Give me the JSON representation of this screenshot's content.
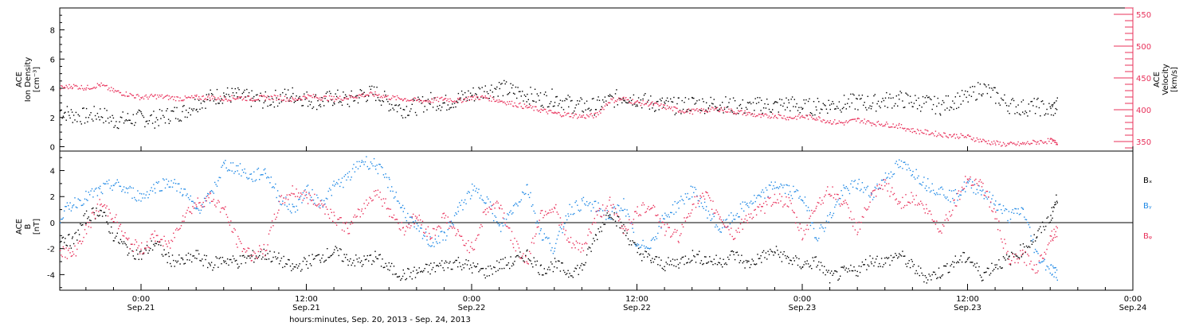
{
  "x_axis": {
    "title": "hours:minutes, Sep. 20, 2013 - Sep. 24, 2013",
    "ticks": [
      {
        "hour": 0,
        "time": "0:00",
        "date": "Sep.21"
      },
      {
        "hour": 12,
        "time": "12:00",
        "date": "Sep.21"
      },
      {
        "hour": 24,
        "time": "0:00",
        "date": "Sep.22"
      },
      {
        "hour": 36,
        "time": "12:00",
        "date": "Sep.22"
      },
      {
        "hour": 48,
        "time": "0:00",
        "date": "Sep.23"
      },
      {
        "hour": 60,
        "time": "12:00",
        "date": "Sep.23"
      },
      {
        "hour": 72,
        "time": "0:00",
        "date": "Sep.24"
      }
    ],
    "range_hours": [
      -5.9,
      72
    ]
  },
  "colors": {
    "black": "#000000",
    "magenta": "#e8305a",
    "blue": "#1e88e5"
  },
  "chart_data": [
    {
      "type": "scatter",
      "panel": "top",
      "ylabel_left": [
        "ACE",
        "Ion Density",
        "[cm⁻³]"
      ],
      "ylabel_right": [
        "ACE",
        "Velocity",
        "[km/s]"
      ],
      "ylim_left": [
        -0.3,
        9.5
      ],
      "ylim_right": [
        335,
        560
      ],
      "yticks_left": [
        0,
        2,
        4,
        6,
        8
      ],
      "yticks_right": [
        350,
        400,
        450,
        500,
        550
      ],
      "series": [
        {
          "axis": "left",
          "color": "black",
          "x": [
            -5.9,
            -5.0,
            -4.0,
            -3.0,
            -2.0,
            -1.0,
            0,
            1,
            2,
            3,
            4,
            5,
            6,
            7,
            8,
            9,
            10,
            11,
            12,
            13,
            14,
            15,
            16,
            17,
            18,
            19,
            20,
            21,
            22,
            23,
            24,
            25,
            26,
            27,
            28,
            29,
            30,
            31,
            32,
            33,
            34,
            35,
            36,
            37,
            38,
            39,
            40,
            41,
            42,
            43,
            44,
            45,
            46,
            47,
            48,
            49,
            50,
            51,
            52,
            53,
            54,
            55,
            56,
            57,
            58,
            59,
            60,
            61,
            62,
            63,
            64,
            65,
            66,
            66.5
          ],
          "values": [
            2.5,
            2.2,
            2.1,
            2.3,
            1.8,
            1.9,
            2.0,
            1.9,
            2.2,
            2.4,
            3.0,
            3.4,
            3.6,
            3.5,
            3.3,
            3.2,
            3.4,
            3.6,
            3.3,
            3.1,
            3.4,
            3.2,
            3.6,
            3.7,
            3.0,
            2.6,
            2.8,
            3.2,
            3.0,
            3.3,
            3.6,
            3.9,
            4.1,
            3.8,
            3.6,
            3.3,
            3.4,
            3.0,
            2.8,
            2.8,
            3.2,
            3.5,
            3.3,
            3.0,
            2.9,
            2.8,
            3.0,
            2.9,
            3.0,
            2.8,
            2.7,
            2.9,
            2.8,
            3.0,
            2.7,
            2.8,
            2.9,
            3.0,
            3.1,
            3.0,
            3.2,
            3.3,
            3.1,
            3.0,
            2.8,
            3.2,
            3.4,
            4.1,
            3.5,
            2.9,
            2.7,
            2.8,
            2.5,
            2.9
          ]
        },
        {
          "axis": "right",
          "color": "magenta",
          "x": [
            -5.9,
            -5.0,
            -4.0,
            -3.0,
            -2.0,
            -1.0,
            0,
            1,
            2,
            3,
            4,
            5,
            6,
            7,
            8,
            9,
            10,
            11,
            12,
            13,
            14,
            15,
            16,
            17,
            18,
            19,
            20,
            21,
            22,
            23,
            24,
            25,
            26,
            27,
            28,
            29,
            30,
            31,
            32,
            33,
            34,
            35,
            36,
            37,
            38,
            39,
            40,
            41,
            42,
            43,
            44,
            45,
            46,
            47,
            48,
            49,
            50,
            51,
            52,
            53,
            54,
            55,
            56,
            57,
            58,
            59,
            60,
            61,
            62,
            63,
            64,
            65,
            66,
            66.5
          ],
          "values": [
            435,
            438,
            435,
            440,
            430,
            425,
            420,
            422,
            420,
            418,
            420,
            420,
            418,
            420,
            418,
            420,
            420,
            416,
            422,
            420,
            418,
            420,
            424,
            425,
            420,
            418,
            415,
            415,
            418,
            415,
            420,
            420,
            415,
            410,
            405,
            400,
            395,
            393,
            390,
            392,
            415,
            418,
            412,
            410,
            405,
            400,
            398,
            400,
            402,
            398,
            395,
            390,
            392,
            388,
            390,
            388,
            382,
            380,
            385,
            380,
            378,
            375,
            368,
            365,
            362,
            360,
            358,
            352,
            348,
            346,
            347,
            350,
            352,
            348
          ]
        }
      ]
    },
    {
      "type": "scatter",
      "panel": "bottom",
      "ylabel_left": [
        "ACE",
        "B",
        "[nT]"
      ],
      "ylim": [
        -5.2,
        5.5
      ],
      "yticks": [
        -4,
        -2,
        0,
        2,
        4
      ],
      "zero_line": true,
      "series": [
        {
          "name": "Bₓ",
          "color": "black",
          "x": [
            -5.9,
            -5.0,
            -4.0,
            -3.0,
            -2.0,
            -1.0,
            0,
            1,
            2,
            3,
            4,
            5,
            6,
            7,
            8,
            9,
            10,
            11,
            12,
            13,
            14,
            15,
            16,
            17,
            18,
            19,
            20,
            21,
            22,
            23,
            24,
            25,
            26,
            27,
            28,
            29,
            30,
            31,
            32,
            33,
            34,
            35,
            36,
            37,
            38,
            39,
            40,
            41,
            42,
            43,
            44,
            45,
            46,
            47,
            48,
            49,
            50,
            51,
            52,
            53,
            54,
            55,
            56,
            57,
            58,
            59,
            60,
            61,
            62,
            63,
            64,
            65,
            66,
            66.5
          ],
          "values": [
            -1.0,
            -1.5,
            0.5,
            1.0,
            -1.0,
            -2.0,
            -2.5,
            -1.5,
            -2.8,
            -3.0,
            -2.5,
            -3.2,
            -2.8,
            -3.0,
            -2.6,
            -2.4,
            -2.8,
            -3.5,
            -3.0,
            -2.6,
            -2.2,
            -2.8,
            -3.0,
            -2.6,
            -3.5,
            -4.0,
            -3.8,
            -3.5,
            -3.2,
            -3.0,
            -3.4,
            -3.8,
            -3.2,
            -3.0,
            -2.4,
            -3.6,
            -3.2,
            -3.8,
            -3.4,
            -1.0,
            1.0,
            -0.5,
            -2.2,
            -2.8,
            -3.2,
            -3.0,
            -2.5,
            -2.8,
            -3.0,
            -2.4,
            -3.2,
            -2.6,
            -2.2,
            -2.8,
            -3.2,
            -3.0,
            -4.2,
            -3.8,
            -3.6,
            -2.8,
            -3.0,
            -2.4,
            -3.4,
            -4.2,
            -3.8,
            -3.0,
            -2.6,
            -4.0,
            -3.2,
            -2.8,
            -2.0,
            -1.0,
            0.5,
            2.0
          ]
        },
        {
          "name": "Bᵧ",
          "color": "blue",
          "x": [
            -5.9,
            -5.0,
            -4.0,
            -3.0,
            -2.0,
            -1.0,
            0,
            1,
            2,
            3,
            4,
            5,
            6,
            7,
            8,
            9,
            10,
            11,
            12,
            13,
            14,
            15,
            16,
            17,
            18,
            19,
            20,
            21,
            22,
            23,
            24,
            25,
            26,
            27,
            28,
            29,
            30,
            31,
            32,
            33,
            34,
            35,
            36,
            37,
            38,
            39,
            40,
            41,
            42,
            43,
            44,
            45,
            46,
            47,
            48,
            49,
            50,
            51,
            52,
            53,
            54,
            55,
            56,
            57,
            58,
            59,
            60,
            61,
            62,
            63,
            64,
            65,
            66,
            66.5
          ],
          "values": [
            0.5,
            1.5,
            2.0,
            2.5,
            3.0,
            2.5,
            2.0,
            2.8,
            3.2,
            2.5,
            1.0,
            2.0,
            4.5,
            4.2,
            3.5,
            4.0,
            2.0,
            1.0,
            2.5,
            1.5,
            2.8,
            3.5,
            4.8,
            4.5,
            3.0,
            1.0,
            -0.5,
            -1.5,
            -1.0,
            1.0,
            2.5,
            2.0,
            -0.5,
            1.2,
            2.8,
            -0.8,
            -2.0,
            1.0,
            1.5,
            1.2,
            0.5,
            1.5,
            -2.0,
            -1.5,
            0.5,
            1.5,
            2.5,
            1.0,
            -0.5,
            0.5,
            1.5,
            2.0,
            3.0,
            2.5,
            2.0,
            -1.0,
            0.5,
            2.5,
            3.0,
            2.2,
            3.5,
            4.5,
            4.0,
            3.0,
            2.5,
            2.0,
            3.0,
            2.5,
            1.5,
            0.5,
            1.0,
            -2.5,
            -3.5,
            -4.0
          ]
        },
        {
          "name": "Bᵩ",
          "color": "magenta",
          "x": [
            -5.9,
            -5.0,
            -4.0,
            -3.0,
            -2.0,
            -1.0,
            0,
            1,
            2,
            3,
            4,
            5,
            6,
            7,
            8,
            9,
            10,
            11,
            12,
            13,
            14,
            15,
            16,
            17,
            18,
            19,
            20,
            21,
            22,
            23,
            24,
            25,
            26,
            27,
            28,
            29,
            30,
            31,
            32,
            33,
            34,
            35,
            36,
            37,
            38,
            39,
            40,
            41,
            42,
            43,
            44,
            45,
            46,
            47,
            48,
            49,
            50,
            51,
            52,
            53,
            54,
            55,
            56,
            57,
            58,
            59,
            60,
            61,
            62,
            63,
            64,
            65,
            66,
            66.5
          ],
          "values": [
            -2.0,
            -2.5,
            -0.5,
            1.5,
            0.5,
            -1.5,
            -2.0,
            -1.0,
            -1.8,
            0.5,
            1.5,
            2.0,
            1.0,
            -1.5,
            -2.5,
            -2.0,
            1.5,
            2.5,
            2.0,
            1.5,
            0.5,
            -0.5,
            1.0,
            2.5,
            1.0,
            -0.5,
            0.5,
            -1.0,
            0.5,
            -1.0,
            -2.0,
            1.0,
            1.5,
            -1.5,
            -3.0,
            0.8,
            1.2,
            -1.5,
            -2.0,
            0.5,
            1.5,
            -0.5,
            0.8,
            1.5,
            -0.5,
            -1.0,
            1.5,
            2.0,
            0.5,
            -1.0,
            0.5,
            1.0,
            2.0,
            1.5,
            -1.0,
            1.5,
            2.5,
            1.5,
            -0.5,
            2.0,
            3.0,
            1.5,
            2.0,
            1.0,
            -0.5,
            1.5,
            3.5,
            3.0,
            0.5,
            -3.0,
            -2.5,
            -3.5,
            -1.0,
            -0.5
          ]
        }
      ]
    }
  ]
}
